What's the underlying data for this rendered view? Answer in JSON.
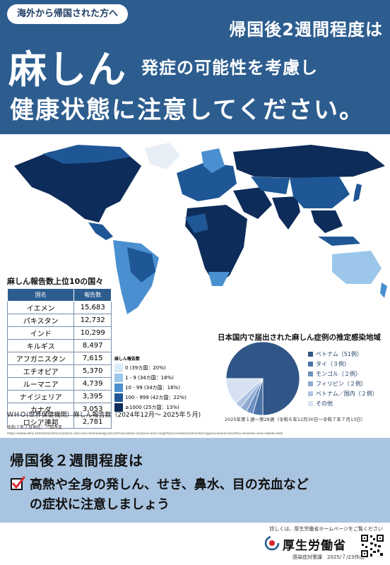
{
  "header": {
    "pill": "海外から帰国された方へ",
    "line1": "帰国後2週間程度は",
    "big": "麻しん",
    "line2": "発症の可能性を考慮し",
    "line3": "健康状態に注意してください。"
  },
  "table": {
    "title": "麻しん報告数上位10の国々",
    "col_country": "国名",
    "col_count": "報告数",
    "rows": [
      {
        "country": "イエメン",
        "count": "15,683"
      },
      {
        "country": "パキスタン",
        "count": "12,732"
      },
      {
        "country": "インド",
        "count": "10,299"
      },
      {
        "country": "キルギス",
        "count": "8,497"
      },
      {
        "country": "アフガニスタン",
        "count": "7,615"
      },
      {
        "country": "エチオピア",
        "count": "5,370"
      },
      {
        "country": "ルーマニア",
        "count": "4,739"
      },
      {
        "country": "ナイジェリア",
        "count": "3,395"
      },
      {
        "country": "カナダ",
        "count": "3,053"
      },
      {
        "country": "ロシア連邦",
        "count": "2,781"
      }
    ]
  },
  "map_legend": {
    "title": "麻しん報告数",
    "items": [
      {
        "label": "0 (39カ国：20%)",
        "color": "#dbeaf7"
      },
      {
        "label": "1 - 9 (34カ国：18%)",
        "color": "#9cc6ea"
      },
      {
        "label": "10 - 99 (34カ国：18%)",
        "color": "#4a90d0"
      },
      {
        "label": "100 - 999 (42カ国：22%)",
        "color": "#1f5796"
      },
      {
        "label": "≥1000 (25カ国：13%)",
        "color": "#0d2c5a"
      }
    ]
  },
  "source": {
    "who": "ＷＨＯ(世界保健機関）麻しん報告数（2024年12月～ 2025年５月)",
    "as_of": "令和７年７月現在；一部改変",
    "url": "https://www.who.int/teams/immunization-vaccines-and-biologicals/immunization-analysis-and-insights/surveillance/monitoring/provisional-monthly-measles-and-rubella-data"
  },
  "pie": {
    "title": "日本国内で届出された麻しん症例の推定感染地域",
    "note": "2025年第１週～第28週（令和６年12月30日～令和７年７月13日）",
    "slices": [
      {
        "label": "ベトナム（51例）",
        "value": 51,
        "color": "#2f5686"
      },
      {
        "label": "タイ（３例）",
        "value": 3,
        "color": "#4a72a6"
      },
      {
        "label": "モンゴル（２例）",
        "value": 2,
        "color": "#6c90bf"
      },
      {
        "label": "フィリピン（２例）",
        "value": 2,
        "color": "#8eaad3"
      },
      {
        "label": "ベトナム／国内（２例）",
        "value": 2,
        "color": "#afc4e3"
      },
      {
        "label": "その他",
        "value": 8,
        "color": "#d6e2f2"
      }
    ]
  },
  "bottom": {
    "title": "帰国後２週間程度は",
    "line1": "高熱や全身の発しん、せき、鼻水、目の充血など",
    "line2": "の症状に注意しましょう"
  },
  "footer": {
    "note": "詳しくは、厚生労働省ホームページをご覧ください",
    "ministry": "厚生労働省",
    "dept": "感染症対策課　2025/７/23作成"
  }
}
